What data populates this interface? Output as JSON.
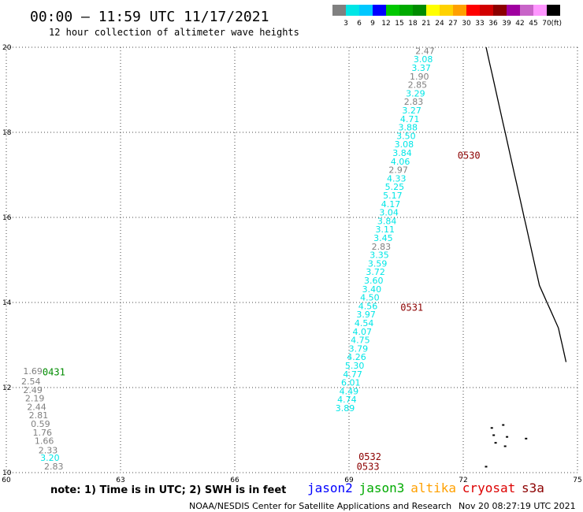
{
  "header": {
    "title": "00:00 – 11:59 UTC 11/17/2021",
    "subtitle": "12 hour collection of altimeter wave heights",
    "credit": "NOAA/NESDIS Center for Satellite Applications and Research",
    "timestamp": "Nov 20 08:27:19 UTC 2021",
    "note": "note: 1) Time is in UTC; 2) SWH is in feet"
  },
  "colorbar": {
    "unit": "(ft)",
    "bins": [
      {
        "label": "3",
        "color": "#808080"
      },
      {
        "label": "6",
        "color": "#00e6e6"
      },
      {
        "label": "9",
        "color": "#00c8ff"
      },
      {
        "label": "12",
        "color": "#0000ff"
      },
      {
        "label": "15",
        "color": "#00c800"
      },
      {
        "label": "18",
        "color": "#00aa00"
      },
      {
        "label": "21",
        "color": "#008c00"
      },
      {
        "label": "24",
        "color": "#ffff00"
      },
      {
        "label": "27",
        "color": "#ffd200"
      },
      {
        "label": "30",
        "color": "#ffa000"
      },
      {
        "label": "33",
        "color": "#ff0000"
      },
      {
        "label": "36",
        "color": "#d20000"
      },
      {
        "label": "39",
        "color": "#8c0000"
      },
      {
        "label": "42",
        "color": "#a000a0"
      },
      {
        "label": "45",
        "color": "#c864c8"
      },
      {
        "label": "70",
        "color": "#ff96ff"
      },
      {
        "label": "",
        "color": "#000000"
      }
    ]
  },
  "legend": [
    {
      "label": "jason2",
      "color": "#0000ff"
    },
    {
      "label": "jason3",
      "color": "#00aa00"
    },
    {
      "label": "altika",
      "color": "#ffa000"
    },
    {
      "label": "cryosat",
      "color": "#dd0000"
    },
    {
      "label": "s3a",
      "color": "#8c0000"
    }
  ],
  "chart_data": {
    "type": "scatter",
    "xlim": [
      60,
      75
    ],
    "ylim": [
      10,
      20
    ],
    "x_ticks": [
      "60",
      "63",
      "66",
      "69",
      "72",
      "75"
    ],
    "y_ticks": [
      "10",
      "12",
      "14",
      "16",
      "18",
      "20"
    ],
    "grid": true,
    "swh_colors": {
      "under_3": "#808080",
      "3_to_6": "#00e6e6"
    },
    "time_labels": [
      {
        "text": "0431",
        "lon": 60.95,
        "lat": 12.36,
        "color": "#008c00"
      },
      {
        "text": "0530",
        "lon": 71.85,
        "lat": 17.45,
        "color": "#8c0000"
      },
      {
        "text": "0531",
        "lon": 70.35,
        "lat": 13.88,
        "color": "#8c0000"
      },
      {
        "text": "0532",
        "lon": 69.25,
        "lat": 10.37,
        "color": "#8c0000"
      },
      {
        "text": "0533",
        "lon": 69.2,
        "lat": 10.14,
        "color": "#8c0000"
      }
    ],
    "tracks": [
      {
        "name": "0431",
        "points": [
          {
            "lon": 60.95,
            "lat": 12.37,
            "swh": "1.69"
          },
          {
            "lon": 60.9,
            "lat": 12.13,
            "swh": "2.54"
          },
          {
            "lon": 60.95,
            "lat": 11.93,
            "swh": "2.49"
          },
          {
            "lon": 61.0,
            "lat": 11.73,
            "swh": "2.19"
          },
          {
            "lon": 61.05,
            "lat": 11.53,
            "swh": "2.44"
          },
          {
            "lon": 61.1,
            "lat": 11.33,
            "swh": "2.81"
          },
          {
            "lon": 61.15,
            "lat": 11.13,
            "swh": "0.59"
          },
          {
            "lon": 61.2,
            "lat": 10.93,
            "swh": "1.76"
          },
          {
            "lon": 61.25,
            "lat": 10.73,
            "swh": "1.66"
          },
          {
            "lon": 61.35,
            "lat": 10.51,
            "swh": "2.33"
          },
          {
            "lon": 61.4,
            "lat": 10.33,
            "swh": "3.20"
          },
          {
            "lon": 61.5,
            "lat": 10.13,
            "swh": "2.83"
          }
        ]
      },
      {
        "name": "0530-0533",
        "points": [
          {
            "lon": 71.25,
            "lat": 19.9,
            "swh": "2.47"
          },
          {
            "lon": 71.2,
            "lat": 19.7,
            "swh": "3.08"
          },
          {
            "lon": 71.15,
            "lat": 19.5,
            "swh": "3.37"
          },
          {
            "lon": 71.1,
            "lat": 19.3,
            "swh": "1.90"
          },
          {
            "lon": 71.05,
            "lat": 19.1,
            "swh": "2.85"
          },
          {
            "lon": 71.0,
            "lat": 18.9,
            "swh": "3.29"
          },
          {
            "lon": 70.95,
            "lat": 18.7,
            "swh": "2.83"
          },
          {
            "lon": 70.9,
            "lat": 18.5,
            "swh": "3.27"
          },
          {
            "lon": 70.85,
            "lat": 18.3,
            "swh": "4.71"
          },
          {
            "lon": 70.8,
            "lat": 18.1,
            "swh": "3.88"
          },
          {
            "lon": 70.75,
            "lat": 17.9,
            "swh": "3.50"
          },
          {
            "lon": 70.7,
            "lat": 17.7,
            "swh": "3.08"
          },
          {
            "lon": 70.65,
            "lat": 17.5,
            "swh": "3.84"
          },
          {
            "lon": 70.6,
            "lat": 17.3,
            "swh": "4.06"
          },
          {
            "lon": 70.55,
            "lat": 17.1,
            "swh": "2.97"
          },
          {
            "lon": 70.5,
            "lat": 16.9,
            "swh": "4.33"
          },
          {
            "lon": 70.45,
            "lat": 16.7,
            "swh": "5.25"
          },
          {
            "lon": 70.4,
            "lat": 16.5,
            "swh": "5.17"
          },
          {
            "lon": 70.35,
            "lat": 16.3,
            "swh": "4.17"
          },
          {
            "lon": 70.3,
            "lat": 16.1,
            "swh": "3.04"
          },
          {
            "lon": 70.25,
            "lat": 15.9,
            "swh": "3.84"
          },
          {
            "lon": 70.2,
            "lat": 15.7,
            "swh": "3.11"
          },
          {
            "lon": 70.15,
            "lat": 15.5,
            "swh": "3.45"
          },
          {
            "lon": 70.1,
            "lat": 15.3,
            "swh": "2.83"
          },
          {
            "lon": 70.05,
            "lat": 15.1,
            "swh": "3.35"
          },
          {
            "lon": 70.0,
            "lat": 14.9,
            "swh": "3.59"
          },
          {
            "lon": 69.95,
            "lat": 14.7,
            "swh": "3.72"
          },
          {
            "lon": 69.9,
            "lat": 14.5,
            "swh": "3.60"
          },
          {
            "lon": 69.85,
            "lat": 14.3,
            "swh": "3.40"
          },
          {
            "lon": 69.8,
            "lat": 14.1,
            "swh": "4.50"
          },
          {
            "lon": 69.75,
            "lat": 13.9,
            "swh": "4.56"
          },
          {
            "lon": 69.7,
            "lat": 13.7,
            "swh": "3.97"
          },
          {
            "lon": 69.65,
            "lat": 13.5,
            "swh": "4.54"
          },
          {
            "lon": 69.6,
            "lat": 13.3,
            "swh": "4.07"
          },
          {
            "lon": 69.55,
            "lat": 13.1,
            "swh": "4.75"
          },
          {
            "lon": 69.5,
            "lat": 12.9,
            "swh": "3.79"
          },
          {
            "lon": 69.45,
            "lat": 12.7,
            "swh": "4.26"
          },
          {
            "lon": 69.4,
            "lat": 12.5,
            "swh": "5.30"
          },
          {
            "lon": 69.35,
            "lat": 12.3,
            "swh": "4.77"
          },
          {
            "lon": 69.3,
            "lat": 12.1,
            "swh": "6.01"
          },
          {
            "lon": 69.25,
            "lat": 11.9,
            "swh": "4.49"
          },
          {
            "lon": 69.2,
            "lat": 11.7,
            "swh": "4.74"
          },
          {
            "lon": 69.15,
            "lat": 11.5,
            "swh": "3.89"
          }
        ]
      }
    ],
    "coastline": [
      [
        72.6,
        20.0
      ],
      [
        72.65,
        19.8
      ],
      [
        72.7,
        19.6
      ],
      [
        72.75,
        19.4
      ],
      [
        72.8,
        19.2
      ],
      [
        72.85,
        19.0
      ],
      [
        72.9,
        18.8
      ],
      [
        72.95,
        18.6
      ],
      [
        73.0,
        18.4
      ],
      [
        73.05,
        18.2
      ],
      [
        73.1,
        18.0
      ],
      [
        73.15,
        17.8
      ],
      [
        73.2,
        17.6
      ],
      [
        73.25,
        17.4
      ],
      [
        73.3,
        17.2
      ],
      [
        73.35,
        17.0
      ],
      [
        73.4,
        16.8
      ],
      [
        73.45,
        16.6
      ],
      [
        73.5,
        16.4
      ],
      [
        73.55,
        16.2
      ],
      [
        73.6,
        16.0
      ],
      [
        73.65,
        15.8
      ],
      [
        73.7,
        15.6
      ],
      [
        73.75,
        15.4
      ],
      [
        73.8,
        15.2
      ],
      [
        73.85,
        15.0
      ],
      [
        73.9,
        14.8
      ],
      [
        73.95,
        14.6
      ],
      [
        74.0,
        14.4
      ],
      [
        74.1,
        14.2
      ],
      [
        74.2,
        14.0
      ],
      [
        74.3,
        13.8
      ],
      [
        74.4,
        13.6
      ],
      [
        74.5,
        13.4
      ],
      [
        74.55,
        13.2
      ],
      [
        74.6,
        13.0
      ],
      [
        74.65,
        12.8
      ],
      [
        74.7,
        12.6
      ]
    ],
    "islands": [
      [
        72.75,
        11.05
      ],
      [
        72.8,
        10.88
      ],
      [
        72.85,
        10.7
      ],
      [
        73.05,
        11.12
      ],
      [
        73.15,
        10.84
      ],
      [
        73.1,
        10.62
      ],
      [
        72.6,
        10.14
      ],
      [
        73.65,
        10.8
      ]
    ]
  }
}
